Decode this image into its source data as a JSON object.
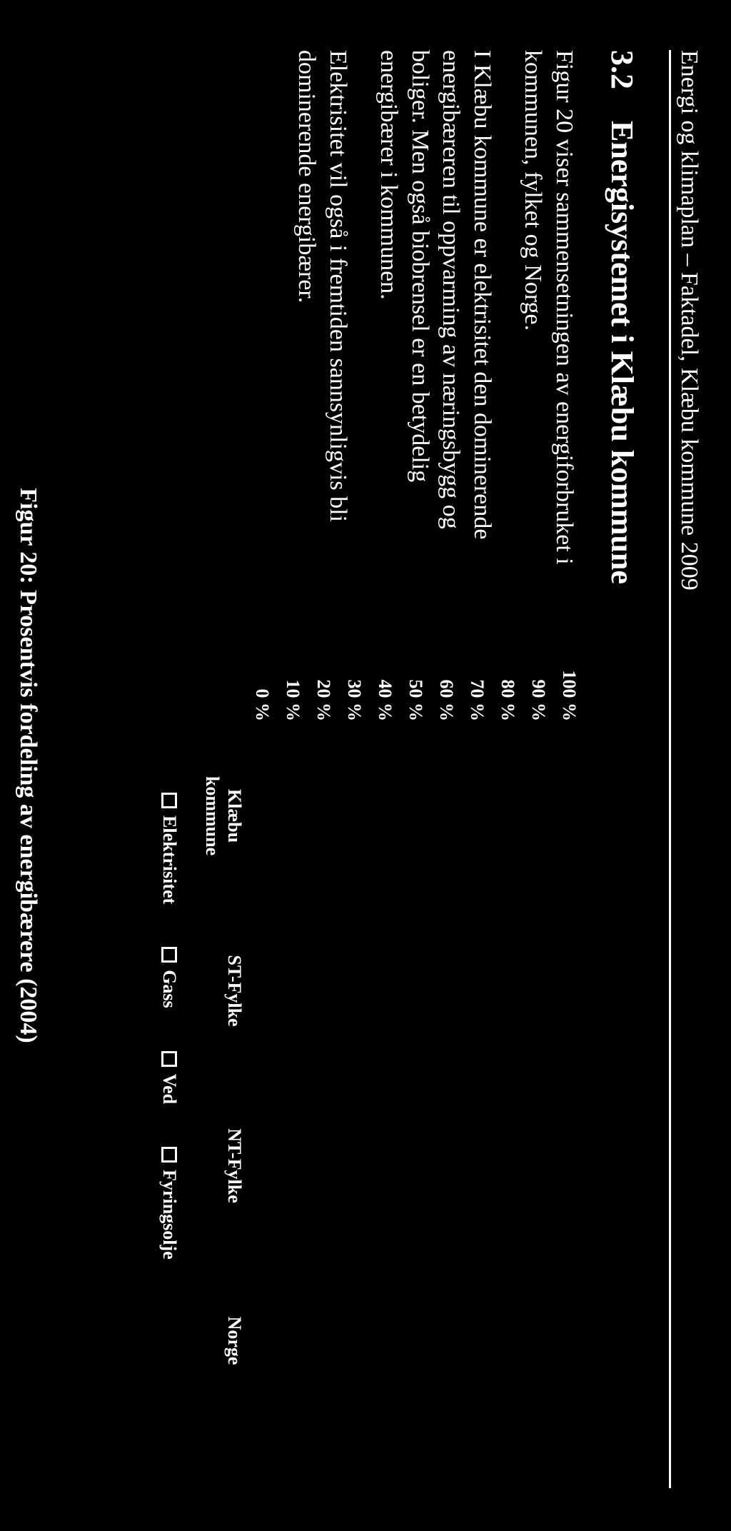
{
  "header": {
    "running": "Energi og klimaplan – Faktadel, Klæbu kommune 2009"
  },
  "section": {
    "number": "3.2",
    "title": "Energisystemet i Klæbu kommune"
  },
  "paragraphs": {
    "p1": "Figur 20 viser sammensetningen av energiforbruket i kommunen, fylket og Norge.",
    "p2": "I Klæbu kommune er elektrisitet den dominerende energibæreren til oppvarming av næringsbygg og boliger. Men også biobrensel er en betydelig energibærer i kommunen.",
    "p3": "Elektrisitet vil også i fremtiden sannsynligvis bli dominerende energibærer."
  },
  "chart": {
    "type": "bar",
    "y_ticks": [
      "100 %",
      "90 %",
      "80 %",
      "70 %",
      "60 %",
      "50 %",
      "40 %",
      "30 %",
      "20 %",
      "10 %",
      "0 %"
    ],
    "y_fontsize": 26,
    "categories": [
      "Klæbu\nkommune",
      "ST-Fylke",
      "NT-Fylke",
      "Norge"
    ],
    "x_fontsize": 26,
    "legend": {
      "items": [
        "Elektrisitet",
        "Gass",
        "Ved",
        "Fyringsolje"
      ],
      "swatch_border_color": "#ffffff",
      "swatch_fill_color": "#000000",
      "fontsize": 26
    },
    "background_color": "#000000",
    "text_color": "#ffffff"
  },
  "caption": "Figur 20: Prosentvis fordeling av energibærere (2004)"
}
